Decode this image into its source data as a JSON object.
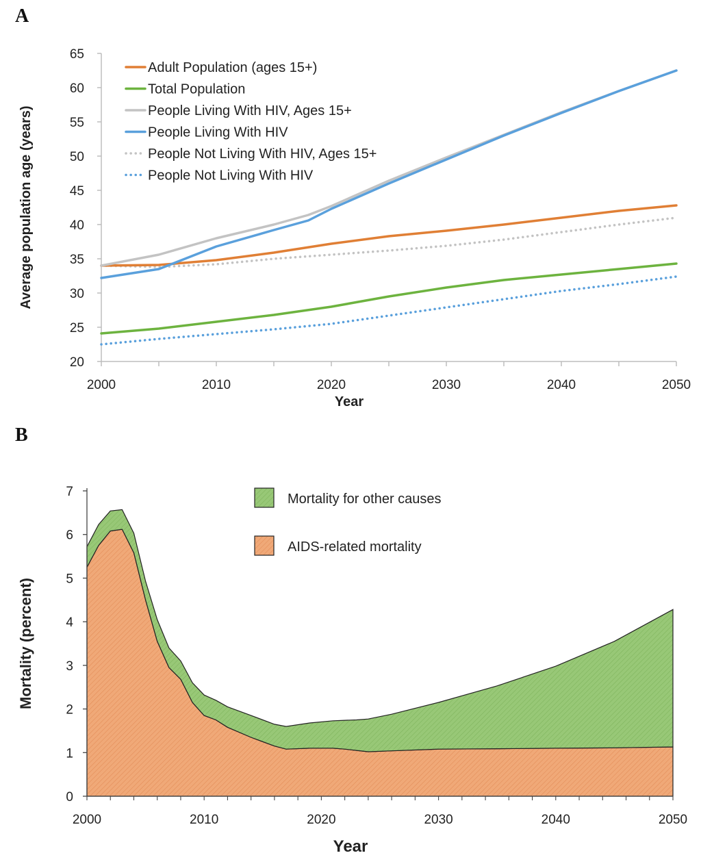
{
  "chart_data": [
    {
      "panel": "A",
      "type": "line",
      "xlabel": "Year",
      "ylabel": "Average population age  (years)",
      "xlim": [
        2000,
        2050
      ],
      "ylim": [
        20,
        65
      ],
      "x_ticks": [
        2000,
        2010,
        2020,
        2030,
        2040,
        2050
      ],
      "y_ticks": [
        20,
        25,
        30,
        35,
        40,
        45,
        50,
        55,
        60,
        65
      ],
      "legend_position": "top-left",
      "series": [
        {
          "name": "Adult Population (ages 15+)",
          "color": "#e07f35",
          "style": "solid",
          "x": [
            2000,
            2005,
            2010,
            2015,
            2020,
            2025,
            2030,
            2035,
            2040,
            2045,
            2050
          ],
          "y": [
            34.0,
            34.1,
            34.8,
            35.9,
            37.2,
            38.3,
            39.1,
            40.0,
            41.0,
            42.0,
            42.8
          ]
        },
        {
          "name": "Total Population",
          "color": "#6db33f",
          "style": "solid",
          "x": [
            2000,
            2005,
            2010,
            2015,
            2020,
            2025,
            2030,
            2035,
            2040,
            2045,
            2050
          ],
          "y": [
            24.1,
            24.8,
            25.8,
            26.8,
            28.0,
            29.5,
            30.8,
            31.9,
            32.7,
            33.5,
            34.3
          ]
        },
        {
          "name": "People Living With HIV, Ages 15+",
          "color": "#c3c3c3",
          "style": "solid",
          "x": [
            2000,
            2005,
            2010,
            2015,
            2018,
            2020,
            2025,
            2030,
            2035,
            2040,
            2045,
            2050
          ],
          "y": [
            34.0,
            35.6,
            38.0,
            40.0,
            41.4,
            42.7,
            46.4,
            49.8,
            53.1,
            56.4,
            59.5,
            62.5
          ]
        },
        {
          "name": "People Living With HIV",
          "color": "#5aa0dc",
          "style": "solid",
          "x": [
            2000,
            2005,
            2010,
            2015,
            2018,
            2020,
            2025,
            2030,
            2035,
            2040,
            2045,
            2050
          ],
          "y": [
            32.2,
            33.5,
            36.8,
            39.2,
            40.6,
            42.3,
            46.0,
            49.5,
            53.0,
            56.3,
            59.5,
            62.5
          ]
        },
        {
          "name": "People Not Living With HIV, Ages 15+",
          "color": "#c3c3c3",
          "style": "dotted",
          "x": [
            2000,
            2005,
            2010,
            2015,
            2020,
            2025,
            2030,
            2035,
            2040,
            2045,
            2050
          ],
          "y": [
            34.0,
            33.8,
            34.2,
            35.0,
            35.6,
            36.2,
            36.9,
            37.8,
            38.9,
            40.0,
            41.0
          ]
        },
        {
          "name": "People Not Living With HIV",
          "color": "#5aa0dc",
          "style": "dotted",
          "x": [
            2000,
            2005,
            2010,
            2015,
            2020,
            2025,
            2030,
            2035,
            2040,
            2045,
            2050
          ],
          "y": [
            22.5,
            23.3,
            24.0,
            24.7,
            25.5,
            26.7,
            27.9,
            29.1,
            30.3,
            31.3,
            32.4
          ]
        }
      ]
    },
    {
      "panel": "B",
      "type": "area",
      "stacked": true,
      "xlabel": "Year",
      "ylabel": "Mortality (percent)",
      "xlim": [
        2000,
        2050
      ],
      "ylim": [
        0,
        7
      ],
      "x_ticks": [
        2000,
        2010,
        2020,
        2030,
        2040,
        2050
      ],
      "y_ticks": [
        0,
        1,
        2,
        3,
        4,
        5,
        6,
        7
      ],
      "legend_position": "top-center",
      "x": [
        2000,
        2001,
        2002,
        2003,
        2004,
        2005,
        2006,
        2007,
        2008,
        2009,
        2010,
        2011,
        2012,
        2014,
        2016,
        2017,
        2019,
        2021,
        2022,
        2023,
        2024,
        2026,
        2030,
        2035,
        2040,
        2045,
        2050
      ],
      "series": [
        {
          "name": "AIDS-related mortality",
          "color": "#f0a978",
          "values": [
            5.25,
            5.75,
            6.08,
            6.12,
            5.58,
            4.5,
            3.55,
            2.95,
            2.68,
            2.15,
            1.85,
            1.75,
            1.58,
            1.35,
            1.15,
            1.08,
            1.1,
            1.1,
            1.08,
            1.05,
            1.02,
            1.04,
            1.08,
            1.09,
            1.1,
            1.11,
            1.13
          ]
        },
        {
          "name": "Mortality for other causes",
          "color": "#98c877",
          "values": [
            0.47,
            0.48,
            0.46,
            0.45,
            0.45,
            0.43,
            0.5,
            0.45,
            0.42,
            0.45,
            0.47,
            0.45,
            0.47,
            0.5,
            0.5,
            0.52,
            0.58,
            0.63,
            0.66,
            0.7,
            0.75,
            0.84,
            1.07,
            1.44,
            1.88,
            2.44,
            3.15
          ]
        }
      ]
    }
  ],
  "panels": {
    "a": {
      "letter": "A"
    },
    "b": {
      "letter": "B"
    }
  }
}
